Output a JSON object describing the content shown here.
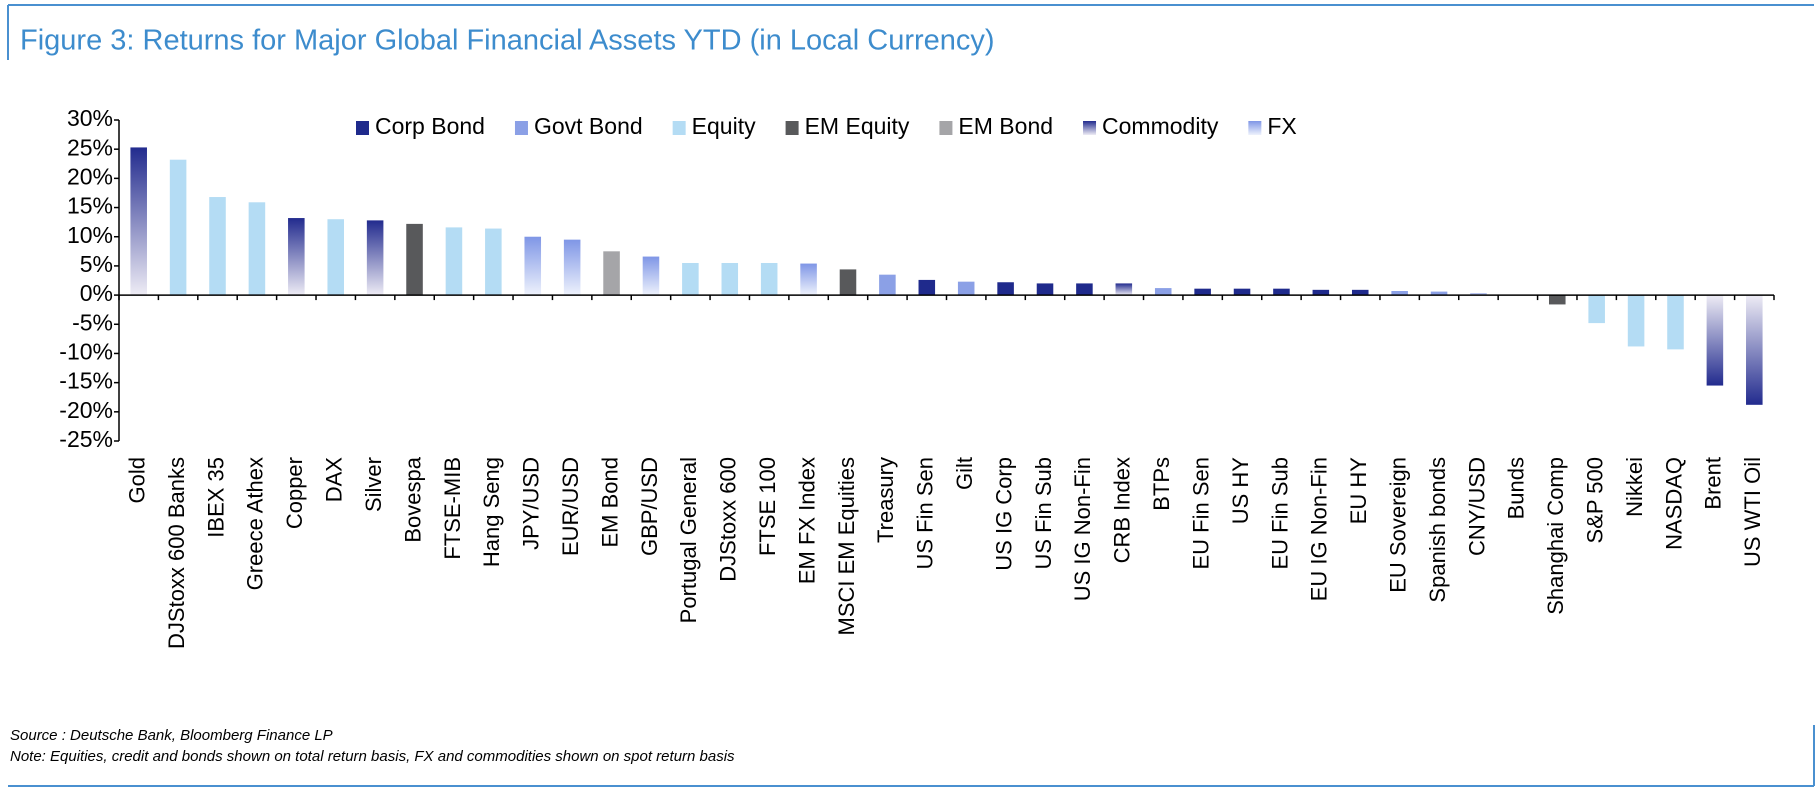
{
  "chart_data": {
    "type": "bar",
    "title": "Figure 3: Returns for Major Global Financial Assets YTD (in Local Currency)",
    "source": "Source : Deutsche Bank, Bloomberg Finance LP",
    "note": "Note: Equities, credit and bonds shown on total return basis, FX and commodities shown on spot return basis",
    "categories": [
      "Gold",
      "DJStoxx 600 Banks",
      "IBEX 35",
      "Greece Athex",
      "Copper",
      "DAX",
      "Silver",
      "Bovespa",
      "FTSE-MIB",
      "Hang Seng",
      "JPY/USD",
      "EUR/USD",
      "EM Bond",
      "GBP/USD",
      "Portugal General",
      "DJStoxx 600",
      "FTSE 100",
      "EM FX Index",
      "MSCI EM Equities",
      "Treasury",
      "US Fin Sen",
      "Gilt",
      "US IG Corp",
      "US Fin Sub",
      "US IG Non-Fin",
      "CRB Index",
      "BTPs",
      "EU Fin Sen",
      "US HY",
      "EU Fin Sub",
      "EU IG Non-Fin",
      "EU HY",
      "EU Sovereign",
      "Spanish bonds",
      "CNY/USD",
      "Bunds",
      "Shanghai Comp",
      "S&P 500",
      "Nikkei",
      "NASDAQ",
      "Brent",
      "US WTI Oil"
    ],
    "series": [
      {
        "name": "Corp Bond",
        "color": "#1f2a8c",
        "values": [
          null,
          null,
          null,
          null,
          null,
          null,
          null,
          null,
          null,
          null,
          null,
          null,
          null,
          null,
          null,
          null,
          null,
          null,
          null,
          null,
          2.6,
          null,
          2.2,
          2.0,
          2.0,
          null,
          null,
          1.1,
          1.1,
          1.1,
          0.9,
          0.9,
          null,
          null,
          null,
          null,
          null,
          null,
          null,
          null,
          null,
          null
        ]
      },
      {
        "name": "Govt Bond",
        "color": "#8ba0e6",
        "values": [
          null,
          null,
          null,
          null,
          null,
          null,
          null,
          null,
          null,
          null,
          null,
          null,
          null,
          null,
          null,
          null,
          null,
          null,
          null,
          3.5,
          null,
          2.3,
          null,
          null,
          null,
          null,
          1.2,
          null,
          null,
          null,
          null,
          null,
          0.7,
          0.6,
          null,
          0.1,
          null,
          null,
          null,
          null,
          null,
          null
        ]
      },
      {
        "name": "Equity",
        "color": "#b4dcf4",
        "values": [
          null,
          23.2,
          16.8,
          15.9,
          null,
          13.0,
          null,
          null,
          11.6,
          11.4,
          null,
          null,
          null,
          null,
          5.5,
          5.5,
          5.5,
          null,
          null,
          null,
          null,
          null,
          null,
          null,
          null,
          null,
          null,
          null,
          null,
          null,
          null,
          null,
          null,
          null,
          null,
          null,
          null,
          -4.8,
          -8.8,
          -9.3,
          null,
          null
        ]
      },
      {
        "name": "EM Equity",
        "color": "#58595b",
        "values": [
          null,
          null,
          null,
          null,
          null,
          null,
          null,
          12.2,
          null,
          null,
          null,
          null,
          null,
          null,
          null,
          null,
          null,
          null,
          4.4,
          null,
          null,
          null,
          null,
          null,
          null,
          null,
          null,
          null,
          null,
          null,
          null,
          null,
          null,
          null,
          null,
          null,
          -1.6,
          null,
          null,
          null,
          null,
          null
        ]
      },
      {
        "name": "EM Bond",
        "color": "#a5a5a8",
        "values": [
          null,
          null,
          null,
          null,
          null,
          null,
          null,
          null,
          null,
          null,
          null,
          null,
          7.5,
          null,
          null,
          null,
          null,
          null,
          null,
          null,
          null,
          null,
          null,
          null,
          null,
          null,
          null,
          null,
          null,
          null,
          null,
          null,
          null,
          null,
          null,
          null,
          null,
          null,
          null,
          null,
          null,
          null
        ]
      },
      {
        "name": "Commodity",
        "color": [
          "#222b8e",
          "#eeecf5"
        ],
        "values": [
          25.3,
          null,
          null,
          null,
          13.2,
          null,
          12.8,
          null,
          null,
          null,
          null,
          null,
          null,
          null,
          null,
          null,
          null,
          null,
          null,
          null,
          null,
          null,
          null,
          null,
          null,
          2.0,
          null,
          null,
          null,
          null,
          null,
          null,
          null,
          null,
          null,
          null,
          null,
          null,
          null,
          null,
          -15.5,
          -18.8
        ]
      },
      {
        "name": "FX",
        "color": [
          "#7f96e6",
          "#eef2fc"
        ],
        "values": [
          null,
          null,
          null,
          null,
          null,
          null,
          null,
          null,
          null,
          null,
          10.0,
          9.5,
          null,
          6.6,
          null,
          null,
          null,
          5.4,
          null,
          null,
          null,
          null,
          null,
          null,
          null,
          null,
          null,
          null,
          null,
          null,
          null,
          null,
          null,
          null,
          0.3,
          null,
          null,
          null,
          null,
          null,
          null,
          null
        ]
      }
    ],
    "ylim": [
      -25,
      30
    ],
    "yticks": [
      {
        "value": -25,
        "label": "-25%"
      },
      {
        "value": -20,
        "label": "-20%"
      },
      {
        "value": -15,
        "label": "-15%"
      },
      {
        "value": -10,
        "label": "-10%"
      },
      {
        "value": -5,
        "label": "-5%"
      },
      {
        "value": 0,
        "label": "0%"
      },
      {
        "value": 5,
        "label": "5%"
      },
      {
        "value": 10,
        "label": "10%"
      },
      {
        "value": 15,
        "label": "15%"
      },
      {
        "value": 20,
        "label": "20%"
      },
      {
        "value": 25,
        "label": "25%"
      },
      {
        "value": 30,
        "label": "30%"
      }
    ],
    "legend": "top"
  }
}
